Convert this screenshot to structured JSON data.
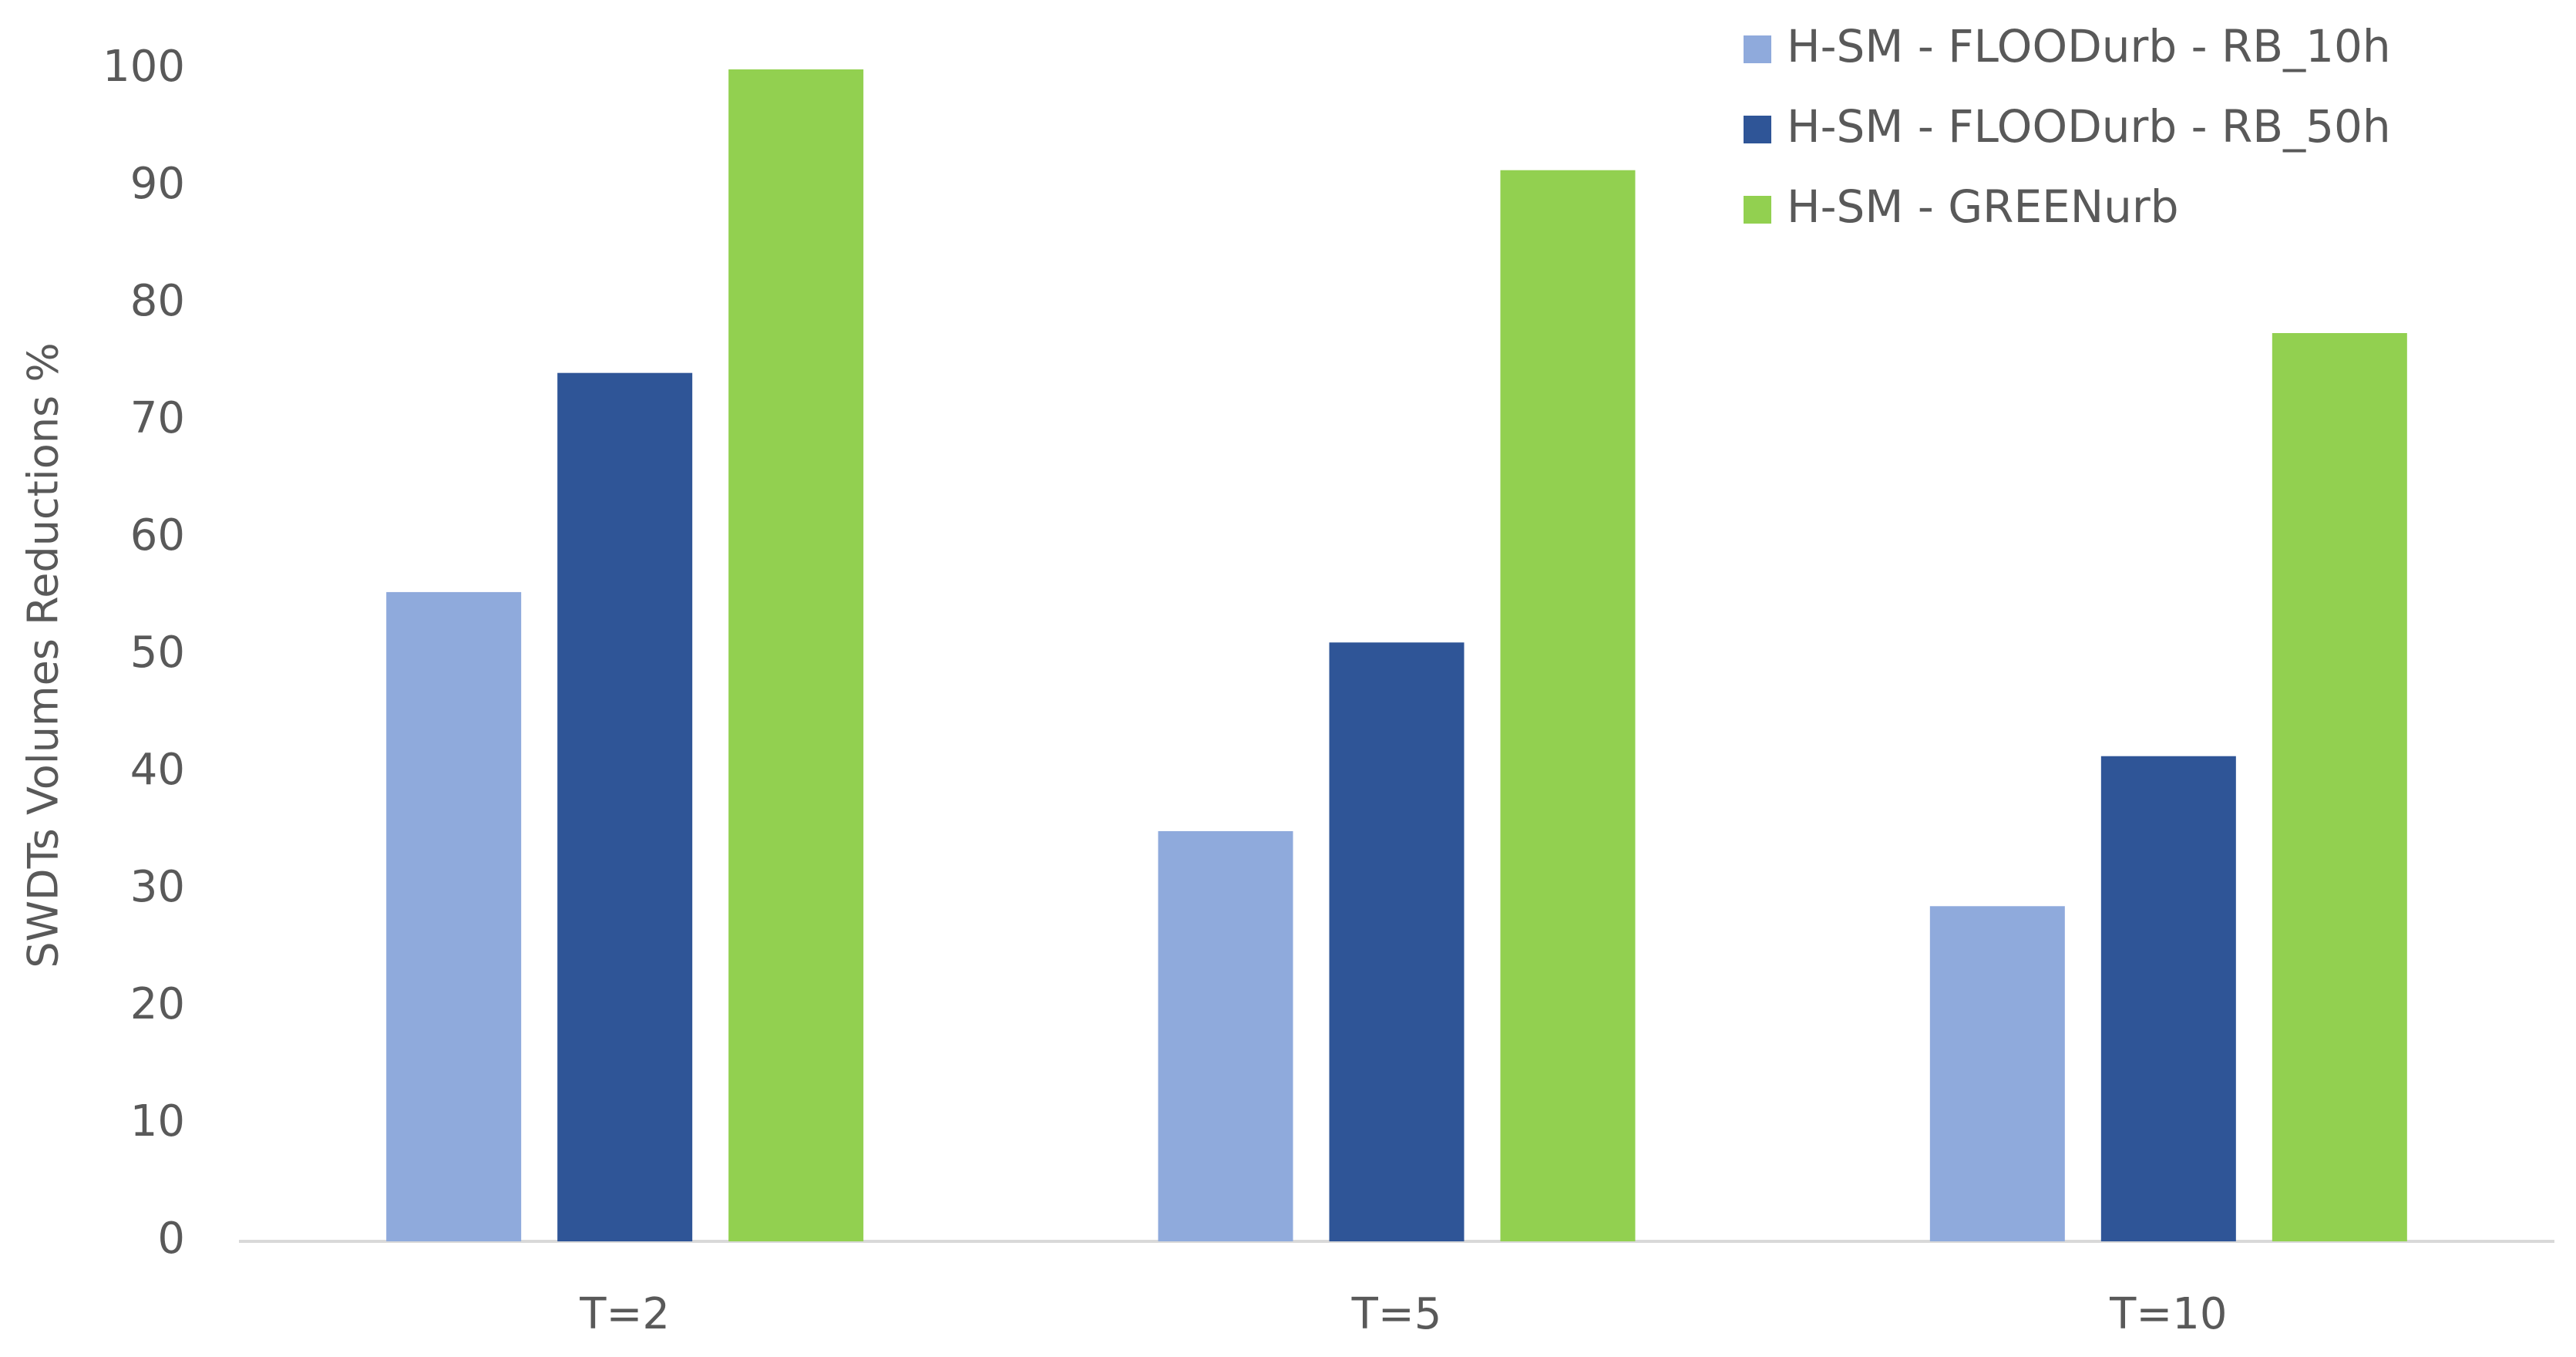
{
  "chart_data": {
    "type": "bar",
    "ylabel": "SWDTs Volumes Reductions %",
    "categories": [
      "T=2",
      "T=5",
      "T=10"
    ],
    "series": [
      {
        "name": "H-SM - FLOODurb - RB_10h",
        "color": "#8faadc",
        "values": [
          55.4,
          35.0,
          28.6
        ]
      },
      {
        "name": "H-SM - FLOODurb - RB_50h",
        "color": "#2f5597",
        "values": [
          74.1,
          51.1,
          41.4
        ]
      },
      {
        "name": "H-SM - GREENurb",
        "color": "#92d050",
        "values": [
          100,
          91.4,
          77.5
        ]
      }
    ],
    "ylim": [
      0,
      100
    ],
    "yticks": [
      0,
      10,
      20,
      30,
      40,
      50,
      60,
      70,
      80,
      90,
      100
    ],
    "grid": false,
    "legend": "top-right"
  }
}
